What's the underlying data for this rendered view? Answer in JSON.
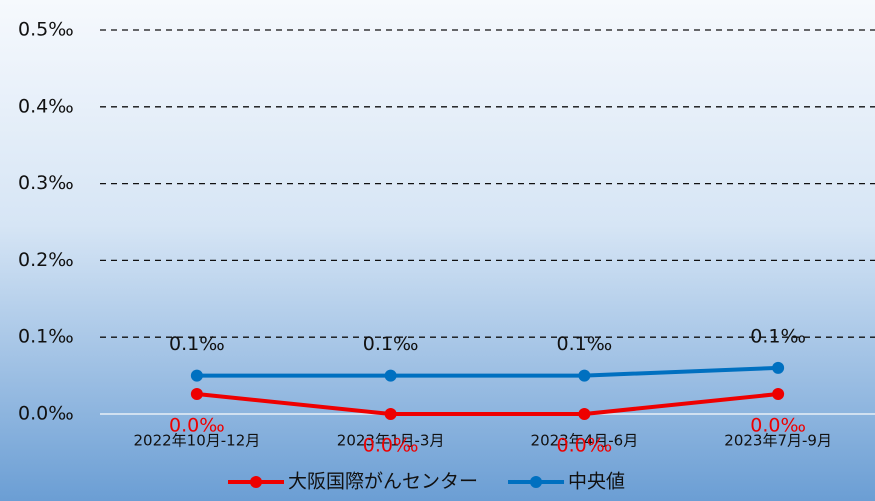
{
  "chart_data": {
    "type": "line",
    "categories": [
      "2022年10月-12月",
      "2023年1月-3月",
      "2023年4月-6月",
      "2023年7月-9月"
    ],
    "series": [
      {
        "name": "大阪国際がんセンター",
        "color": "#ee0000",
        "values": [
          0.026,
          0,
          0,
          0.026
        ],
        "value_labels": [
          "0.0‰",
          "0.0‰",
          "0.0‰",
          "0.0‰"
        ]
      },
      {
        "name": "中央値",
        "color": "#0070c0",
        "values": [
          0.05,
          0.05,
          0.05,
          0.06
        ],
        "value_labels": [
          "0.1‰",
          "0.1‰",
          "0.1‰",
          "0.1‰"
        ]
      }
    ],
    "ylim": [
      0,
      0.5
    ],
    "yticks": [
      {
        "value": 0,
        "label": "0.0‰"
      },
      {
        "value": 0.1,
        "label": "0.1‰"
      },
      {
        "value": 0.2,
        "label": "0.2‰"
      },
      {
        "value": 0.3,
        "label": "0.3‰"
      },
      {
        "value": 0.4,
        "label": "0.4‰"
      },
      {
        "value": 0.5,
        "label": "0.5‰"
      }
    ],
    "grid": true,
    "legend": "bottom"
  }
}
